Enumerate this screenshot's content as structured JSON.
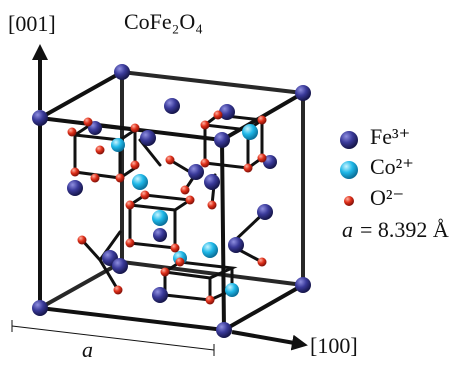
{
  "axis_vertical": "[001]",
  "formula": "CoFe₂O₄",
  "axis_horizontal": "[100]",
  "edge_label": "a",
  "legend": [
    {
      "label": "Fe³⁺"
    },
    {
      "label": "Co²⁺"
    },
    {
      "label": "O²⁻"
    }
  ],
  "lattice": {
    "symbol": "a",
    "equation": "= 8.392 Å"
  }
}
